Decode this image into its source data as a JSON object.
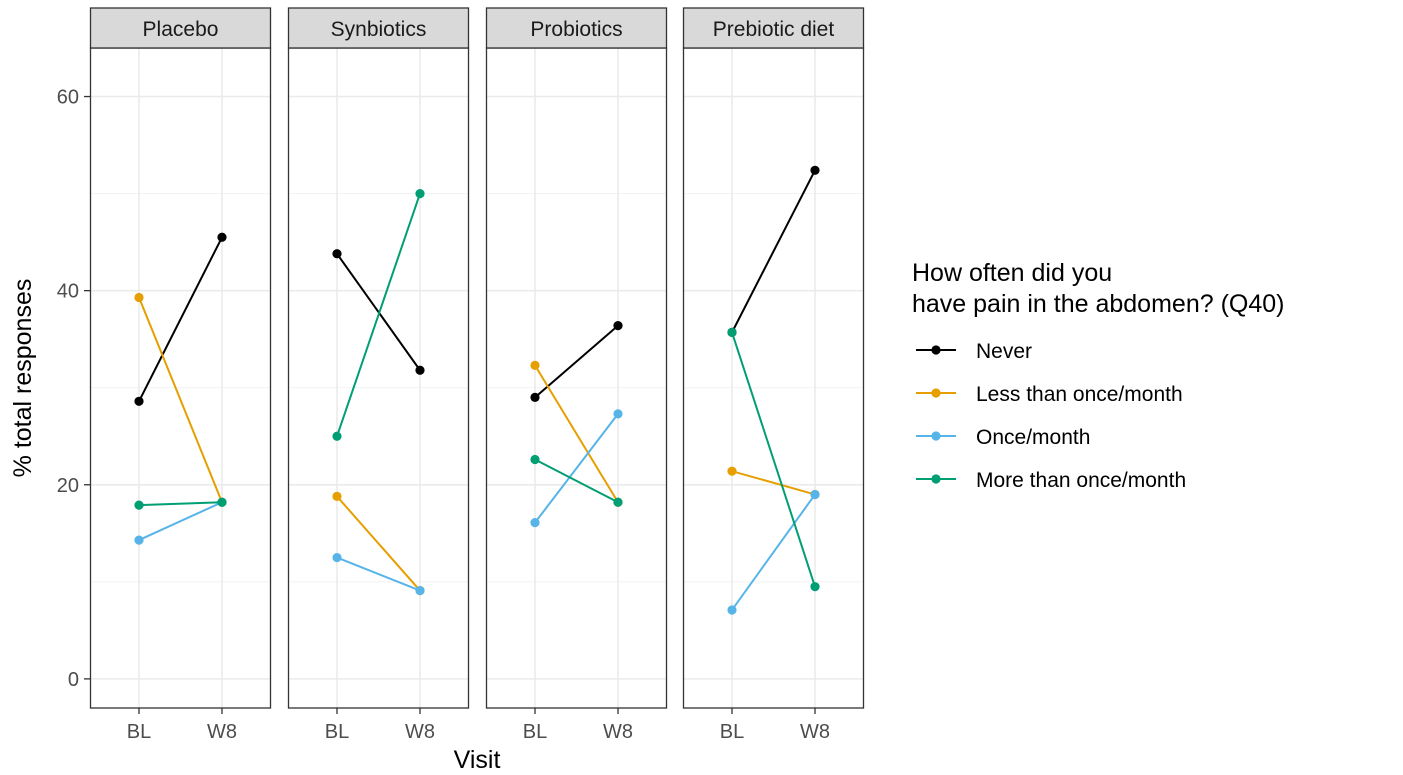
{
  "chart_data": {
    "type": "line",
    "facets": [
      "Placebo",
      "Synbiotics",
      "Probiotics",
      "Prebiotic diet"
    ],
    "x": [
      "BL",
      "W8"
    ],
    "xlabel": "Visit",
    "ylabel": "% total responses",
    "ylim": [
      -3,
      65
    ],
    "yticks": [
      0,
      20,
      40,
      60
    ],
    "grid": true,
    "legend": {
      "title_lines": [
        "How often did you",
        "have pain in the abdomen? (Q40)"
      ],
      "position": "right"
    },
    "series": [
      {
        "name": "Never",
        "color": "#000000",
        "values": {
          "Placebo": [
            28.6,
            45.5
          ],
          "Synbiotics": [
            43.8,
            31.8
          ],
          "Probiotics": [
            29.0,
            36.4
          ],
          "Prebiotic diet": [
            35.7,
            52.4
          ]
        }
      },
      {
        "name": "Less than once/month",
        "color": "#E69F00",
        "values": {
          "Placebo": [
            39.3,
            18.2
          ],
          "Synbiotics": [
            18.8,
            9.1
          ],
          "Probiotics": [
            32.3,
            18.2
          ],
          "Prebiotic diet": [
            21.4,
            19.0
          ]
        }
      },
      {
        "name": "Once/month",
        "color": "#56B4E9",
        "values": {
          "Placebo": [
            14.3,
            18.2
          ],
          "Synbiotics": [
            12.5,
            9.1
          ],
          "Probiotics": [
            16.1,
            27.3
          ],
          "Prebiotic diet": [
            7.1,
            19.0
          ]
        }
      },
      {
        "name": "More than once/month",
        "color": "#009E73",
        "values": {
          "Placebo": [
            17.9,
            18.2
          ],
          "Synbiotics": [
            25.0,
            50.0
          ],
          "Probiotics": [
            22.6,
            18.2
          ],
          "Prebiotic diet": [
            35.7,
            9.5
          ]
        }
      }
    ]
  }
}
